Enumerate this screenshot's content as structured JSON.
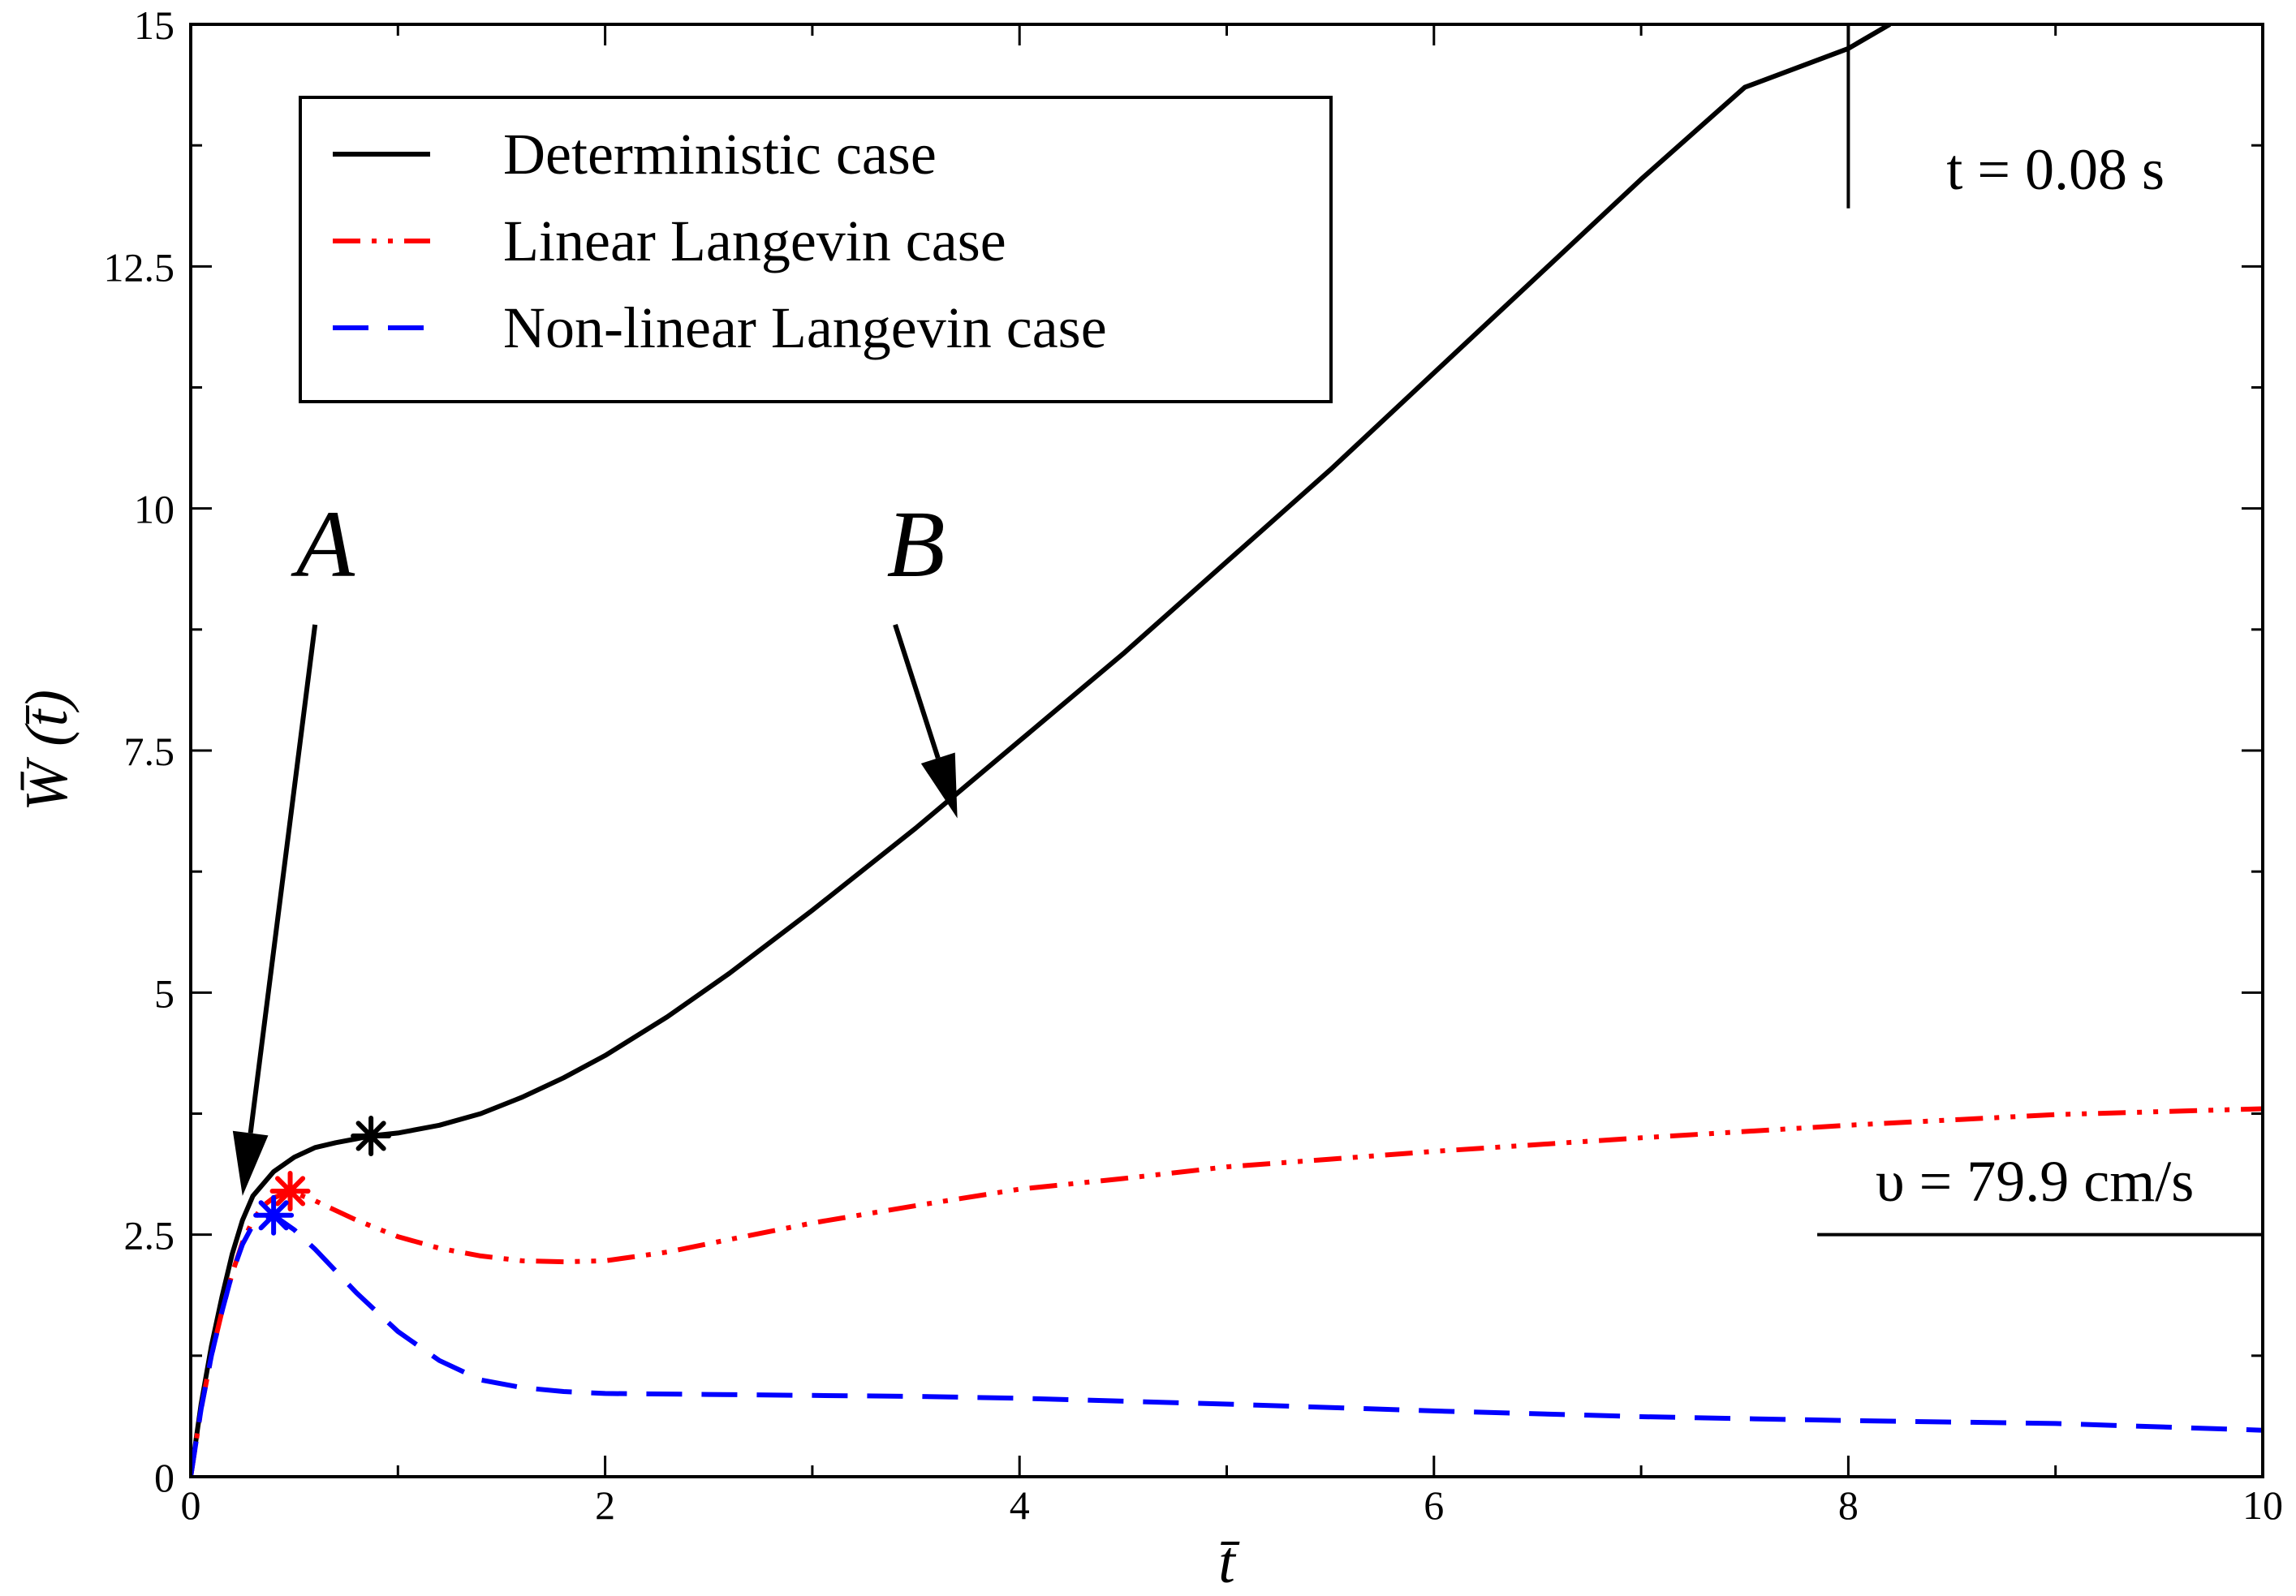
{
  "chart_data": {
    "type": "line",
    "title": "",
    "xlabel": "t̄",
    "ylabel": "W̄ (t̄)",
    "xlim": [
      0,
      10
    ],
    "ylim": [
      0,
      15
    ],
    "x_ticks": [
      0,
      2,
      4,
      6,
      8,
      10
    ],
    "x_tick_labels": [
      "0",
      "2",
      "4",
      "6",
      "8",
      "10"
    ],
    "y_ticks": [
      0,
      2.5,
      5,
      7.5,
      10,
      12.5,
      15
    ],
    "y_tick_labels": [
      "0",
      "2.5",
      "5",
      "7.5",
      "10",
      "12.5",
      "15"
    ],
    "grid": false,
    "legend_position": "top-left",
    "series": [
      {
        "name": "Deterministic case",
        "color": "#000000",
        "style": "solid",
        "x": [
          0,
          0.05,
          0.1,
          0.15,
          0.2,
          0.25,
          0.3,
          0.4,
          0.5,
          0.6,
          0.7,
          0.8,
          0.87,
          1.0,
          1.2,
          1.4,
          1.6,
          1.8,
          2.0,
          2.3,
          2.6,
          3.0,
          3.5,
          4.0,
          4.5,
          5.0,
          5.5,
          6.0,
          6.5,
          7.0,
          7.5,
          8.0,
          8.2
        ],
        "y": [
          0,
          0.75,
          1.35,
          1.85,
          2.3,
          2.65,
          2.9,
          3.15,
          3.3,
          3.4,
          3.45,
          3.49,
          3.52,
          3.55,
          3.63,
          3.75,
          3.92,
          4.12,
          4.35,
          4.75,
          5.2,
          5.85,
          6.7,
          7.6,
          8.5,
          9.45,
          10.4,
          11.4,
          12.4,
          13.4,
          14.35,
          14.75,
          15.0
        ]
      },
      {
        "name": "Linear Langevin case",
        "color": "#ff0000",
        "style": "dash-dot-dot",
        "x": [
          0,
          0.05,
          0.1,
          0.15,
          0.2,
          0.25,
          0.3,
          0.35,
          0.4,
          0.48,
          0.6,
          0.8,
          1.0,
          1.2,
          1.4,
          1.6,
          1.8,
          2.0,
          2.3,
          2.6,
          3.0,
          3.5,
          4.0,
          4.5,
          5.0,
          5.5,
          6.0,
          7.0,
          8.0,
          9.0,
          10.0
        ],
        "y": [
          0,
          0.7,
          1.25,
          1.7,
          2.1,
          2.42,
          2.65,
          2.8,
          2.88,
          2.95,
          2.85,
          2.65,
          2.48,
          2.36,
          2.28,
          2.23,
          2.22,
          2.23,
          2.32,
          2.45,
          2.62,
          2.8,
          2.97,
          3.08,
          3.2,
          3.28,
          3.36,
          3.5,
          3.63,
          3.74,
          3.8
        ]
      },
      {
        "name": "Non-linear Langevin case",
        "color": "#0000ff",
        "style": "dashed",
        "x": [
          0,
          0.05,
          0.1,
          0.15,
          0.2,
          0.25,
          0.3,
          0.35,
          0.4,
          0.5,
          0.6,
          0.8,
          1.0,
          1.2,
          1.4,
          1.6,
          1.8,
          2.0,
          2.5,
          3.0,
          3.5,
          4.0,
          5.0,
          6.0,
          7.0,
          8.0,
          9.0,
          10.0
        ],
        "y": [
          0,
          0.7,
          1.25,
          1.7,
          2.1,
          2.4,
          2.6,
          2.68,
          2.7,
          2.55,
          2.35,
          1.9,
          1.5,
          1.2,
          1.0,
          0.92,
          0.88,
          0.86,
          0.85,
          0.84,
          0.83,
          0.81,
          0.75,
          0.68,
          0.62,
          0.58,
          0.55,
          0.48
        ]
      }
    ],
    "markers": [
      {
        "series": "Deterministic case",
        "x": 0.87,
        "y": 3.52,
        "symbol": "*",
        "color": "#000000"
      },
      {
        "series": "Linear Langevin case",
        "x": 0.48,
        "y": 2.95,
        "symbol": "*",
        "color": "#ff0000"
      },
      {
        "series": "Non-linear Langevin case",
        "x": 0.4,
        "y": 2.7,
        "symbol": "*",
        "color": "#0000ff"
      }
    ],
    "annotations": [
      {
        "label": "A",
        "text_at": [
          0.65,
          9.3
        ],
        "arrow_from": [
          0.6,
          8.8
        ],
        "arrow_to": [
          0.25,
          2.9
        ]
      },
      {
        "label": "B",
        "text_at": [
          3.5,
          9.3
        ],
        "arrow_from": [
          3.4,
          8.8
        ],
        "arrow_to": [
          3.7,
          6.8
        ]
      },
      {
        "label": "t = 0.08 s",
        "reference_line": {
          "orientation": "vertical",
          "at_x": 8.0,
          "y_from": 13.1,
          "y_to": 15.0
        },
        "text_at": [
          9.0,
          13.3
        ]
      },
      {
        "label": "υ = 79.9 cm/s",
        "reference_line": {
          "orientation": "horizontal",
          "at_y": 2.5,
          "x_from": 7.85,
          "x_to": 10.0
        },
        "text_at": [
          8.9,
          2.85
        ]
      }
    ]
  }
}
